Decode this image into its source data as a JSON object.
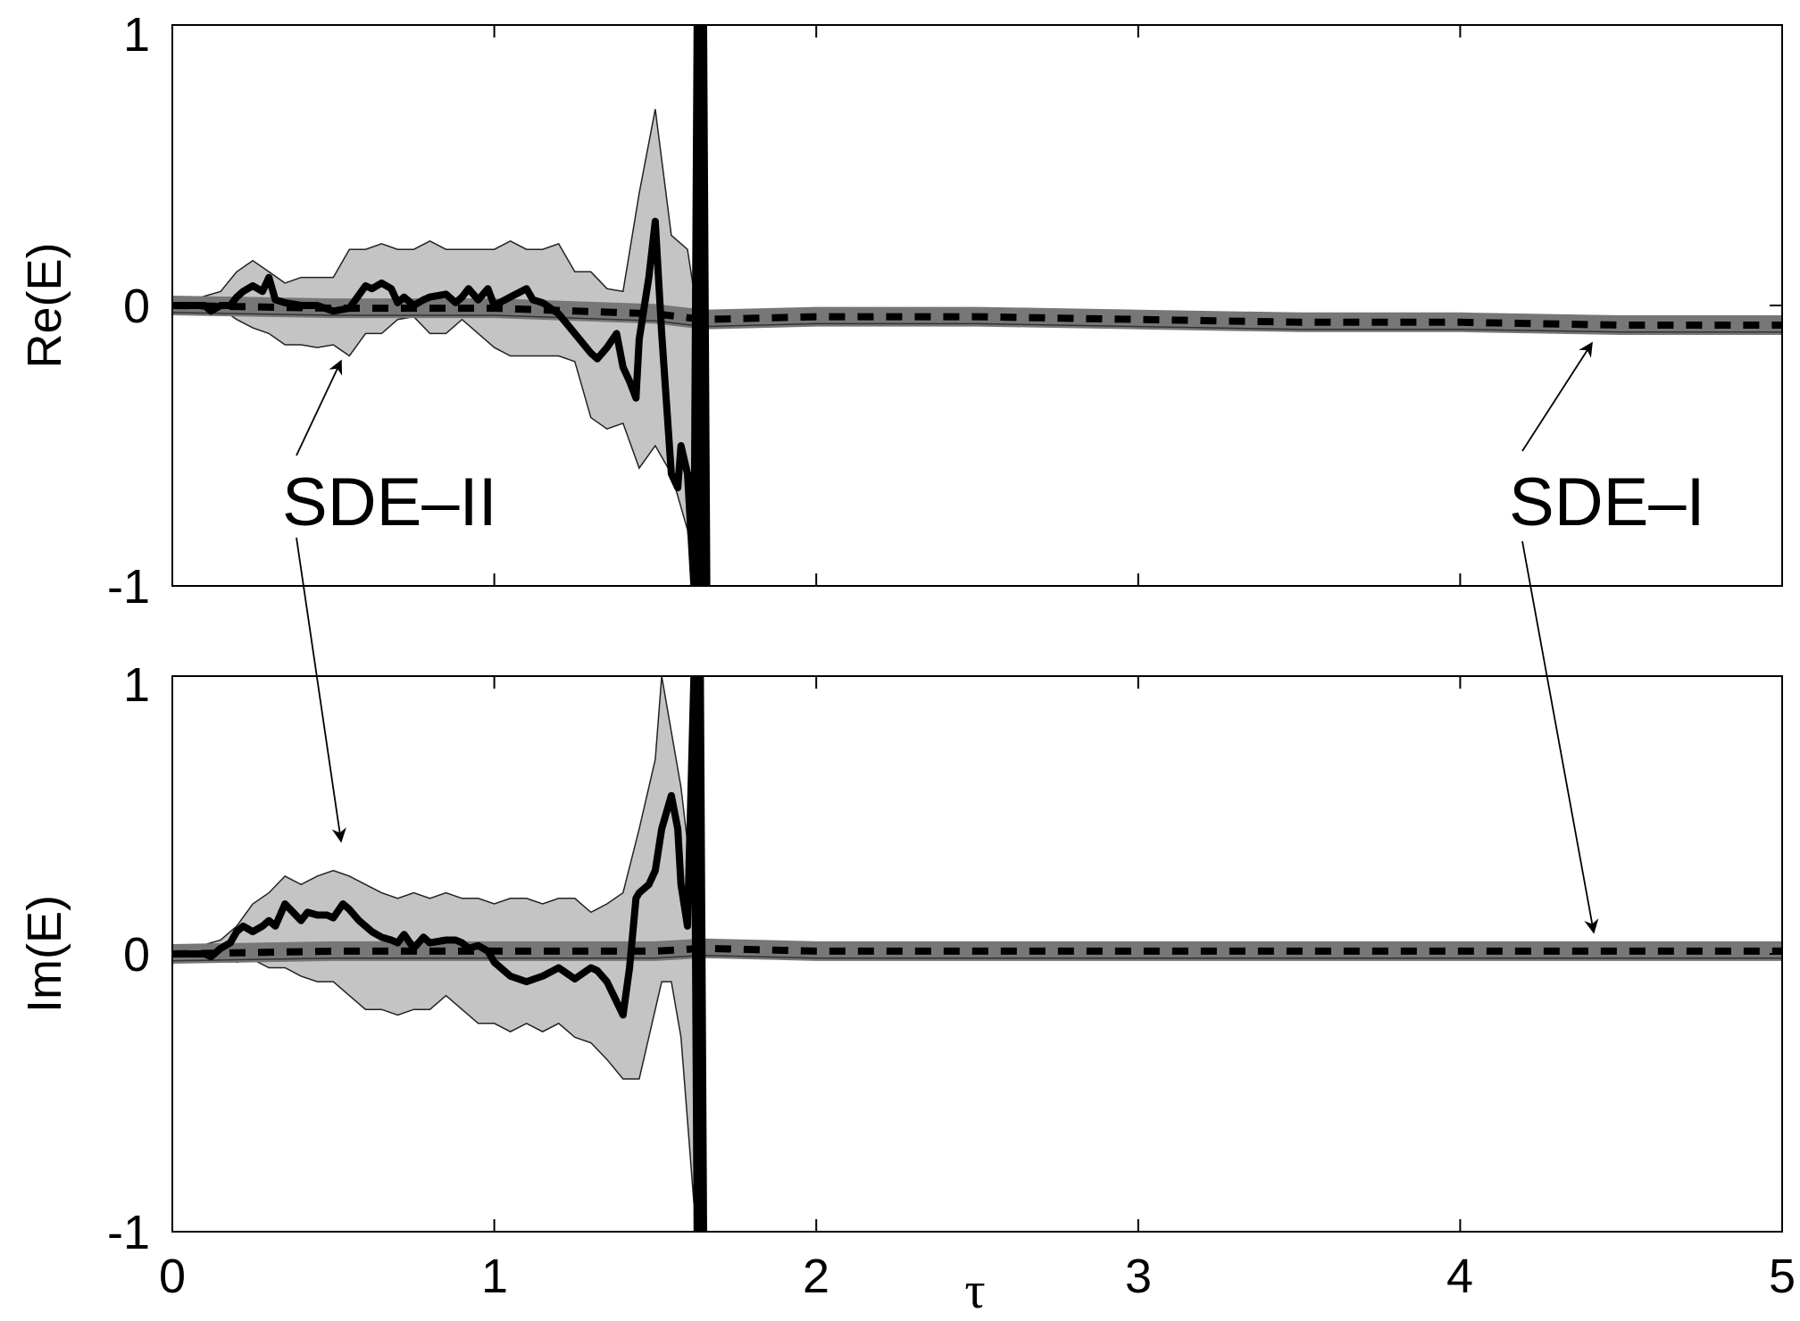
{
  "chart_data": [
    {
      "type": "line",
      "ylabel": "Re(E)",
      "xlabel": "",
      "xlim": [
        0,
        5
      ],
      "ylim": [
        -1,
        1
      ],
      "x_ticks": [
        "0",
        "1",
        "2",
        "3",
        "4",
        "5"
      ],
      "y_ticks": [
        "-1",
        "0",
        "1"
      ],
      "grid": false,
      "series": [
        {
          "style": "thick solid black",
          "x": [
            0,
            0.05,
            0.1,
            0.12,
            0.15,
            0.18,
            0.2,
            0.22,
            0.25,
            0.28,
            0.3,
            0.32,
            0.35,
            0.4,
            0.45,
            0.5,
            0.55,
            0.6,
            0.62,
            0.65,
            0.68,
            0.7,
            0.72,
            0.75,
            0.78,
            0.8,
            0.85,
            0.88,
            0.9,
            0.92,
            0.95,
            0.98,
            1.0,
            1.05,
            1.1,
            1.12,
            1.15,
            1.2,
            1.25,
            1.3,
            1.32,
            1.35,
            1.38,
            1.4,
            1.42,
            1.44,
            1.45,
            1.48,
            1.5,
            1.52,
            1.55,
            1.57,
            1.58,
            1.6,
            1.62,
            1.63,
            1.64,
            1.65,
            1.66
          ],
          "y": [
            0,
            0,
            0,
            -0.02,
            0,
            0,
            0.03,
            0.05,
            0.07,
            0.05,
            0.1,
            0.02,
            0.01,
            0,
            0,
            -0.02,
            -0.01,
            0.07,
            0.06,
            0.08,
            0.06,
            0.01,
            0.03,
            0,
            0.02,
            0.03,
            0.04,
            0.01,
            0.03,
            0.06,
            0.02,
            0.06,
            0,
            0.03,
            0.06,
            0.02,
            0.01,
            -0.03,
            -0.1,
            -0.17,
            -0.19,
            -0.15,
            -0.1,
            -0.22,
            -0.27,
            -0.33,
            -0.12,
            0.1,
            0.3,
            -0.1,
            -0.6,
            -0.65,
            -0.5,
            -0.6,
            -1.0,
            1.0,
            -1.0,
            1.0,
            -1.0
          ]
        },
        {
          "style": "grey band with black dashes",
          "x": [
            0,
            0.5,
            1,
            1.5,
            1.65,
            2,
            2.5,
            3,
            3.5,
            4,
            4.5,
            5
          ],
          "y": [
            0,
            -0.01,
            -0.01,
            -0.03,
            -0.05,
            -0.04,
            -0.04,
            -0.05,
            -0.06,
            -0.06,
            -0.07,
            -0.07
          ]
        }
      ],
      "band": {
        "x": [
          0,
          0.15,
          0.2,
          0.25,
          0.3,
          0.35,
          0.4,
          0.45,
          0.5,
          0.55,
          0.6,
          0.65,
          0.7,
          0.75,
          0.8,
          0.85,
          0.9,
          0.95,
          1.0,
          1.05,
          1.1,
          1.15,
          1.2,
          1.25,
          1.3,
          1.35,
          1.4,
          1.45,
          1.5,
          1.55,
          1.6,
          1.62
        ],
        "upper": [
          0,
          0.05,
          0.12,
          0.16,
          0.12,
          0.08,
          0.1,
          0.1,
          0.1,
          0.2,
          0.2,
          0.22,
          0.2,
          0.2,
          0.23,
          0.2,
          0.2,
          0.2,
          0.2,
          0.23,
          0.2,
          0.2,
          0.22,
          0.12,
          0.12,
          0.06,
          0.05,
          0.4,
          0.7,
          0.25,
          0.2,
          0.05
        ],
        "lower": [
          0,
          -0.01,
          -0.05,
          -0.08,
          -0.1,
          -0.14,
          -0.14,
          -0.15,
          -0.14,
          -0.18,
          -0.1,
          -0.1,
          -0.05,
          -0.04,
          -0.1,
          -0.1,
          -0.05,
          -0.1,
          -0.15,
          -0.18,
          -0.18,
          -0.18,
          -0.18,
          -0.2,
          -0.4,
          -0.44,
          -0.42,
          -0.58,
          -0.5,
          -0.6,
          -0.8,
          -1.0
        ]
      }
    },
    {
      "type": "line",
      "ylabel": "Im(E)",
      "xlabel": "τ",
      "xlim": [
        0,
        5
      ],
      "ylim": [
        -1,
        1
      ],
      "x_ticks": [
        "0",
        "1",
        "2",
        "3",
        "4",
        "5"
      ],
      "y_ticks": [
        "-1",
        "0",
        "1"
      ],
      "grid": false,
      "series": [
        {
          "style": "thick solid black",
          "x": [
            0,
            0.05,
            0.1,
            0.12,
            0.15,
            0.18,
            0.2,
            0.22,
            0.25,
            0.28,
            0.3,
            0.32,
            0.35,
            0.4,
            0.42,
            0.45,
            0.48,
            0.5,
            0.53,
            0.55,
            0.58,
            0.6,
            0.62,
            0.65,
            0.68,
            0.7,
            0.72,
            0.75,
            0.78,
            0.8,
            0.85,
            0.88,
            0.9,
            0.92,
            0.95,
            0.98,
            1.0,
            1.05,
            1.1,
            1.15,
            1.2,
            1.25,
            1.3,
            1.32,
            1.35,
            1.4,
            1.42,
            1.44,
            1.45,
            1.48,
            1.5,
            1.52,
            1.55,
            1.57,
            1.58,
            1.6,
            1.62,
            1.63,
            1.64,
            1.65
          ],
          "y": [
            0,
            0,
            0,
            -0.01,
            0.02,
            0.04,
            0.08,
            0.1,
            0.08,
            0.1,
            0.12,
            0.1,
            0.18,
            0.12,
            0.15,
            0.14,
            0.14,
            0.13,
            0.18,
            0.16,
            0.12,
            0.1,
            0.08,
            0.06,
            0.05,
            0.04,
            0.07,
            0.02,
            0.06,
            0.04,
            0.05,
            0.05,
            0.04,
            0.02,
            0.03,
            0.01,
            -0.03,
            -0.08,
            -0.1,
            -0.08,
            -0.05,
            -0.09,
            -0.05,
            -0.06,
            -0.1,
            -0.22,
            -0.05,
            0.2,
            0.22,
            0.25,
            0.3,
            0.45,
            0.57,
            0.45,
            0.25,
            0.1,
            1.0,
            -1.0,
            1.0,
            -1.0
          ]
        },
        {
          "style": "grey band with black dashes",
          "x": [
            0,
            0.5,
            1,
            1.5,
            1.65,
            2,
            2.5,
            3,
            3.5,
            4,
            4.5,
            5
          ],
          "y": [
            0,
            0.01,
            0.01,
            0.01,
            0.02,
            0.01,
            0.01,
            0.01,
            0.01,
            0.01,
            0.01,
            0.01
          ]
        }
      ],
      "band": {
        "x": [
          0,
          0.15,
          0.2,
          0.25,
          0.3,
          0.35,
          0.4,
          0.45,
          0.5,
          0.55,
          0.6,
          0.65,
          0.7,
          0.75,
          0.8,
          0.85,
          0.9,
          0.95,
          1.0,
          1.05,
          1.1,
          1.15,
          1.2,
          1.25,
          1.3,
          1.35,
          1.4,
          1.45,
          1.5,
          1.52,
          1.55,
          1.58,
          1.6,
          1.62
        ],
        "upper": [
          0,
          0.05,
          0.1,
          0.18,
          0.22,
          0.28,
          0.25,
          0.28,
          0.3,
          0.28,
          0.25,
          0.22,
          0.2,
          0.22,
          0.2,
          0.22,
          0.2,
          0.2,
          0.18,
          0.2,
          0.2,
          0.18,
          0.2,
          0.2,
          0.15,
          0.18,
          0.22,
          0.45,
          0.7,
          1.0,
          0.8,
          0.6,
          0.4,
          0.2
        ],
        "lower": [
          0,
          -0.01,
          -0.03,
          -0.02,
          -0.05,
          -0.05,
          -0.08,
          -0.1,
          -0.1,
          -0.15,
          -0.2,
          -0.2,
          -0.22,
          -0.2,
          -0.2,
          -0.15,
          -0.2,
          -0.25,
          -0.25,
          -0.28,
          -0.25,
          -0.28,
          -0.25,
          -0.3,
          -0.32,
          -0.38,
          -0.45,
          -0.45,
          -0.2,
          -0.1,
          -0.1,
          -0.3,
          -0.6,
          -0.9
        ]
      }
    }
  ],
  "annotations": {
    "left": "SDE–II",
    "right": "SDE–I"
  }
}
